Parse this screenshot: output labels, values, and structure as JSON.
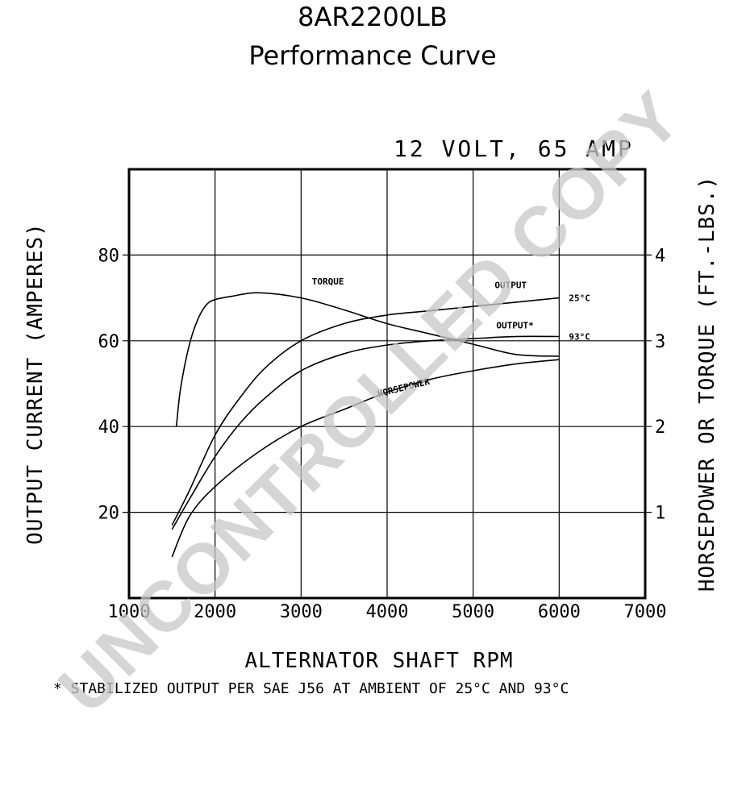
{
  "chart_data": {
    "type": "line",
    "title": "8AR2200LB",
    "subtitle": "Performance Curve",
    "rating": "12 VOLT, 65 AMP",
    "xlabel": "ALTERNATOR SHAFT RPM",
    "ylabel_left": "OUTPUT CURRENT (AMPERES)",
    "ylabel_right": "HORSEPOWER OR TORQUE (FT.-LBS.)",
    "xlim": [
      1000,
      7000
    ],
    "ylim_left": [
      0,
      100
    ],
    "ylim_right": [
      0,
      5
    ],
    "x_ticks": [
      "1000",
      "2000",
      "3000",
      "4000",
      "5000",
      "6000",
      "7000"
    ],
    "y_ticks_left": [
      {
        "value": 20,
        "label": "20"
      },
      {
        "value": 40,
        "label": "40"
      },
      {
        "value": 60,
        "label": "60"
      },
      {
        "value": 80,
        "label": "80"
      }
    ],
    "y_ticks_right": [
      {
        "value": 1,
        "label": "1"
      },
      {
        "value": 2,
        "label": "2"
      },
      {
        "value": 3,
        "label": "3"
      },
      {
        "value": 4,
        "label": "4"
      }
    ],
    "grid": true,
    "series": [
      {
        "name": "OUTPUT",
        "end_label": "25°C",
        "axis": "left",
        "points": [
          [
            1500,
            17
          ],
          [
            1700,
            25
          ],
          [
            2000,
            38
          ],
          [
            2300,
            47
          ],
          [
            2600,
            54
          ],
          [
            3000,
            60
          ],
          [
            3500,
            64
          ],
          [
            4000,
            66
          ],
          [
            4500,
            67
          ],
          [
            5000,
            68
          ],
          [
            5500,
            69
          ],
          [
            6000,
            70
          ]
        ]
      },
      {
        "name": "OUTPUT*",
        "end_label": "93°C",
        "axis": "left",
        "points": [
          [
            1500,
            16
          ],
          [
            1700,
            23
          ],
          [
            2000,
            33
          ],
          [
            2300,
            41
          ],
          [
            2600,
            47
          ],
          [
            3000,
            53
          ],
          [
            3500,
            57
          ],
          [
            4000,
            59
          ],
          [
            4500,
            60
          ],
          [
            5000,
            60.5
          ],
          [
            5500,
            61
          ],
          [
            6000,
            61
          ]
        ]
      },
      {
        "name": "TORQUE",
        "axis": "right",
        "points": [
          [
            1550,
            2.0
          ],
          [
            1600,
            2.45
          ],
          [
            1700,
            2.95
          ],
          [
            1800,
            3.25
          ],
          [
            1900,
            3.42
          ],
          [
            2000,
            3.48
          ],
          [
            2200,
            3.52
          ],
          [
            2500,
            3.56
          ],
          [
            3000,
            3.5
          ],
          [
            3500,
            3.36
          ],
          [
            4000,
            3.2
          ],
          [
            4500,
            3.08
          ],
          [
            5000,
            2.96
          ],
          [
            5500,
            2.84
          ],
          [
            6000,
            2.82
          ]
        ]
      },
      {
        "name": "HORSEPOWER",
        "axis": "right",
        "points": [
          [
            1500,
            0.48
          ],
          [
            1700,
            0.95
          ],
          [
            2000,
            1.3
          ],
          [
            2500,
            1.7
          ],
          [
            3000,
            2.0
          ],
          [
            3500,
            2.2
          ],
          [
            4000,
            2.4
          ],
          [
            4500,
            2.55
          ],
          [
            5000,
            2.65
          ],
          [
            5500,
            2.73
          ],
          [
            6000,
            2.78
          ]
        ]
      }
    ],
    "footnote": "* STABILIZED OUTPUT PER SAE J56 AT AMBIENT OF 25°C AND 93°C"
  },
  "watermark": "UNCONTROLLED COPY"
}
